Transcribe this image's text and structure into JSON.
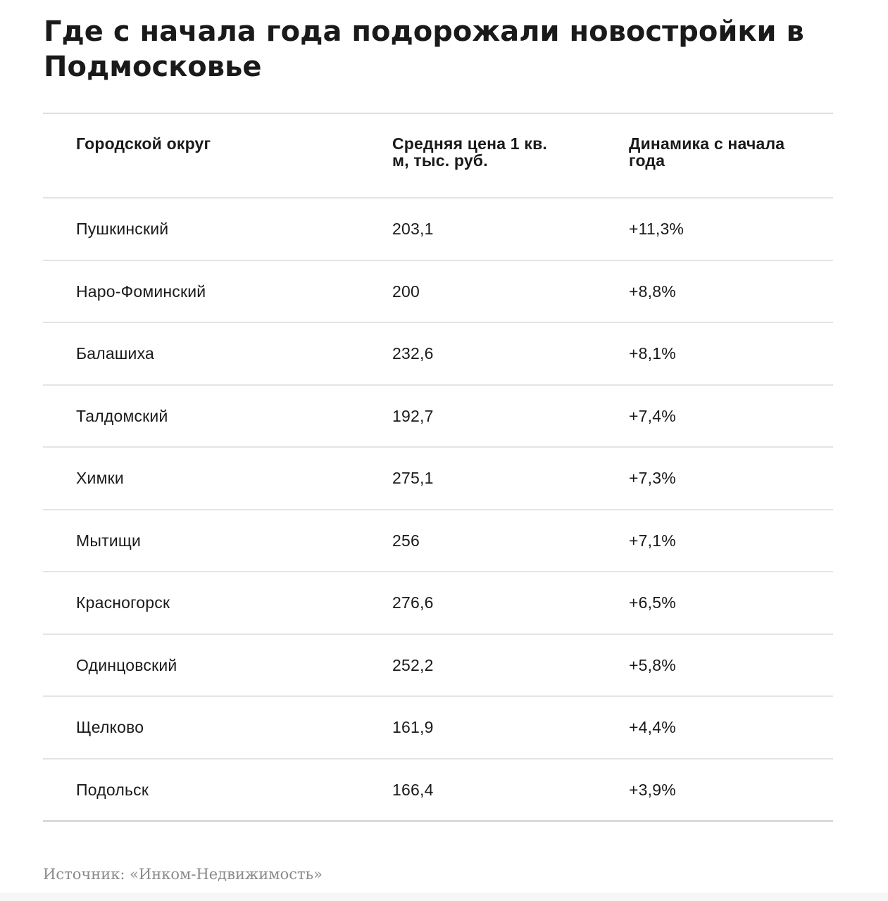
{
  "title": "Где с начала года подорожали новостройки в Подмосковье",
  "table": {
    "headers": {
      "district": "Городской округ",
      "price": "Средняя цена 1 кв. м, тыс. руб.",
      "change": "Динамика с начала года"
    },
    "rows": [
      {
        "district": "Пушкинский",
        "price": "203,1",
        "change": "+11,3%"
      },
      {
        "district": "Наро-Фоминский",
        "price": "200",
        "change": "+8,8%"
      },
      {
        "district": "Балашиха",
        "price": "232,6",
        "change": "+8,1%"
      },
      {
        "district": "Талдомский",
        "price": "192,7",
        "change": "+7,4%"
      },
      {
        "district": "Химки",
        "price": "275,1",
        "change": "+7,3%"
      },
      {
        "district": "Мытищи",
        "price": "256",
        "change": "+7,1%"
      },
      {
        "district": "Красногорск",
        "price": "276,6",
        "change": "+6,5%"
      },
      {
        "district": "Одинцовский",
        "price": "252,2",
        "change": "+5,8%"
      },
      {
        "district": "Щелково",
        "price": "161,9",
        "change": "+4,4%"
      },
      {
        "district": "Подольск",
        "price": "166,4",
        "change": "+3,9%"
      }
    ]
  },
  "source": "Источник: «Инком-Недвижимость»"
}
